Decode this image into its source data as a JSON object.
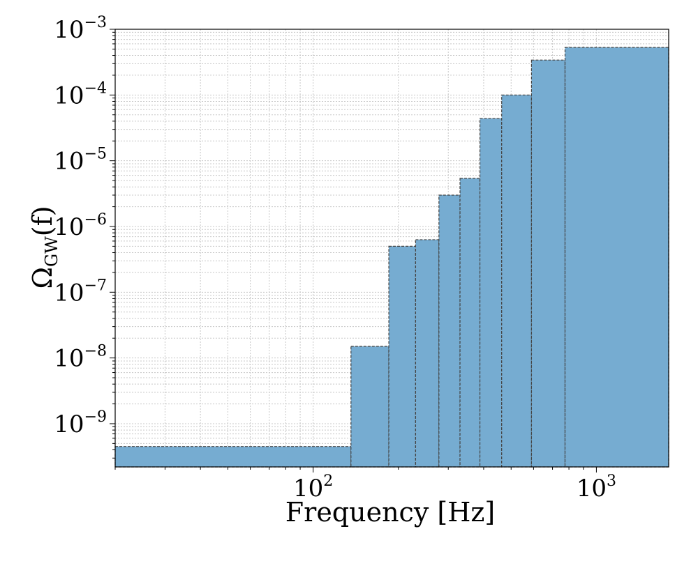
{
  "chart_data": {
    "type": "bar",
    "subtype": "step-histogram",
    "title": "",
    "xlabel": "Frequency [Hz]",
    "ylabel": "Ω",
    "ylabel_subscript": "GW",
    "ylabel_suffix": "(f)",
    "x_scale": "log",
    "y_scale": "log",
    "xlim": [
      20,
      1800
    ],
    "ylim": [
      2.2e-10,
      0.001
    ],
    "x_tick_labels": [
      {
        "value": 100,
        "base": "10",
        "exp": "2"
      },
      {
        "value": 1000,
        "base": "10",
        "exp": "3"
      }
    ],
    "y_tick_labels": [
      {
        "value": 1e-09,
        "base": "10",
        "exp": "−9"
      },
      {
        "value": 1e-08,
        "base": "10",
        "exp": "−8"
      },
      {
        "value": 1e-07,
        "base": "10",
        "exp": "−7"
      },
      {
        "value": 1e-06,
        "base": "10",
        "exp": "−6"
      },
      {
        "value": 1e-05,
        "base": "10",
        "exp": "−5"
      },
      {
        "value": 0.0001,
        "base": "10",
        "exp": "−4"
      },
      {
        "value": 0.001,
        "base": "10",
        "exp": "−3"
      }
    ],
    "grid": true,
    "bar_color": "#76acd1",
    "edge_color": "#444444",
    "bins": [
      {
        "x0": 20,
        "x1": 136,
        "value": 4.5e-10
      },
      {
        "x0": 136,
        "x1": 185,
        "value": 1.5e-08
      },
      {
        "x0": 185,
        "x1": 230,
        "value": 5e-07
      },
      {
        "x0": 230,
        "x1": 278,
        "value": 6.3e-07
      },
      {
        "x0": 278,
        "x1": 330,
        "value": 3e-06
      },
      {
        "x0": 330,
        "x1": 388,
        "value": 5.4e-06
      },
      {
        "x0": 388,
        "x1": 463,
        "value": 4.4e-05
      },
      {
        "x0": 463,
        "x1": 590,
        "value": 0.0001
      },
      {
        "x0": 590,
        "x1": 775,
        "value": 0.00034
      },
      {
        "x0": 775,
        "x1": 1800,
        "value": 0.00053
      }
    ]
  }
}
